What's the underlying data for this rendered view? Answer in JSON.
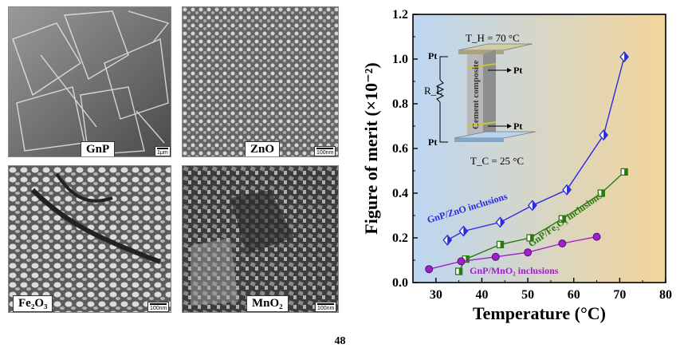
{
  "micrographs": [
    {
      "label": "GnP",
      "scale": "1μm"
    },
    {
      "label": "ZnO",
      "scale": "100nm"
    },
    {
      "label": "Fe₂O₃",
      "scale": "100nm"
    },
    {
      "label": "MnO₂",
      "scale": "100nm"
    }
  ],
  "page_number": "48",
  "chart_data": {
    "type": "line",
    "xlabel": "Temperature (°C)",
    "ylabel": "Figure of merit (×10⁻²)",
    "xlim": [
      25,
      80
    ],
    "ylim": [
      0.0,
      1.2
    ],
    "xticks": [
      30,
      40,
      50,
      60,
      70,
      80
    ],
    "yticks": [
      0.0,
      0.2,
      0.4,
      0.6,
      0.8,
      1.0,
      1.2
    ],
    "grid": false,
    "background": {
      "left_color": "#bcd6f2",
      "right_color": "#f2d59a"
    },
    "series": [
      {
        "name": "GnP/ZnO inclusions",
        "color": "#2a2ae0",
        "marker": "diamond",
        "x": [
          32.5,
          36,
          44,
          51,
          58.5,
          66.5,
          71
        ],
        "y": [
          0.19,
          0.23,
          0.27,
          0.345,
          0.415,
          0.66,
          1.01
        ]
      },
      {
        "name": "GnP/Fe₂O₃ inclusions",
        "color": "#2a7a10",
        "marker": "square",
        "x": [
          35,
          36.5,
          44,
          50.5,
          57.5,
          66,
          71
        ],
        "y": [
          0.05,
          0.105,
          0.17,
          0.2,
          0.285,
          0.4,
          0.495
        ]
      },
      {
        "name": "GnP/MnO₂ inclusions",
        "color": "#a020c8",
        "marker": "circle",
        "x": [
          28.5,
          35.5,
          43,
          50,
          57.5,
          65
        ],
        "y": [
          0.06,
          0.095,
          0.115,
          0.135,
          0.175,
          0.205
        ]
      }
    ],
    "inset": {
      "th": "T_H = 70 °C",
      "tc": "T_C = 25 °C",
      "rl": "R_L",
      "pt": "Pt",
      "composite": "Cement composite"
    }
  }
}
